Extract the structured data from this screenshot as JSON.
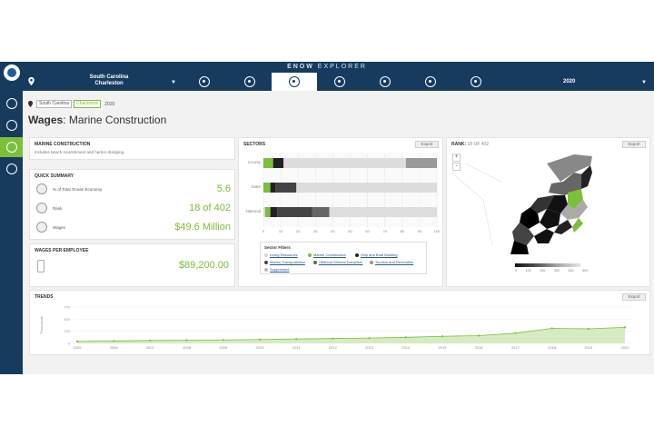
{
  "header": {
    "title_bold": "ENOW",
    "title_rest": " EXPLORER",
    "location_state": "South Carolina",
    "location_city": "Charleston",
    "year": "2020",
    "tabs": [
      {
        "icon": "living-resources-icon"
      },
      {
        "icon": "marine-construction-icon"
      },
      {
        "icon": "ship-boat-building-icon"
      },
      {
        "icon": "marine-transportation-icon"
      },
      {
        "icon": "offshore-mineral-icon"
      },
      {
        "icon": "tourism-recreation-icon"
      },
      {
        "icon": "all-sectors-icon"
      }
    ]
  },
  "sidebar": {
    "items": [
      {
        "icon": "globe-icon"
      },
      {
        "icon": "explore-icon"
      },
      {
        "icon": "economy-icon"
      },
      {
        "icon": "trends-icon"
      }
    ]
  },
  "breadcrumb": {
    "state": "South Carolina",
    "city": "Charleston",
    "year": "2020"
  },
  "page": {
    "title_bold": "Wages",
    "title_rest": ": Marine Construction"
  },
  "sector_panel": {
    "title": "MARINE CONSTRUCTION",
    "description": "Includes beach nourishment and harbor dredging."
  },
  "quick_summary": {
    "title": "QUICK SUMMARY",
    "rows": [
      {
        "label": "% of Total Ocean Economy",
        "value": "5.6"
      },
      {
        "label": "Rank",
        "value": "18 of 402"
      },
      {
        "label": "Wages",
        "value": "$49.6 Million"
      }
    ]
  },
  "wages_per_employee": {
    "title": "WAGES PER EMPLOYEE",
    "value": "$89,200.00"
  },
  "sectors": {
    "title": "SECTORS",
    "export_label": "Export",
    "filters_title": "Sector Filters",
    "filters": [
      {
        "label": "Living Resources",
        "color": "#d9d9d9"
      },
      {
        "label": "Marine Construction",
        "color": "#7bbf3a"
      },
      {
        "label": "Ship and Boat Building",
        "color": "#222222"
      },
      {
        "label": "Marine Transportation",
        "color": "#444444"
      },
      {
        "label": "Offshore Mineral Extraction",
        "color": "#666666"
      },
      {
        "label": "Tourism and Recreation",
        "color": "#999999"
      },
      {
        "label": "Suppressed",
        "color": "#bbbbbb"
      }
    ]
  },
  "chart_data": [
    {
      "type": "bar",
      "orientation": "horizontal",
      "stacked": true,
      "categories": [
        "County",
        "State",
        "National"
      ],
      "x_ticks": [
        "0",
        "10",
        "20",
        "30",
        "40",
        "50",
        "60",
        "70",
        "80",
        "90",
        "100"
      ],
      "xlim": [
        0,
        100
      ],
      "series": [
        {
          "name": "Living Resources",
          "color": "#d9d9d9",
          "values": [
            0,
            0,
            1
          ]
        },
        {
          "name": "Marine Construction",
          "color": "#7bbf3a",
          "values": [
            5.6,
            4,
            3
          ]
        },
        {
          "name": "Ship and Boat Building",
          "color": "#222222",
          "values": [
            6,
            3,
            4
          ]
        },
        {
          "name": "Marine Transportation",
          "color": "#444444",
          "values": [
            0,
            12,
            20
          ]
        },
        {
          "name": "Offshore Mineral Extraction",
          "color": "#666666",
          "values": [
            0,
            0,
            10
          ]
        },
        {
          "name": "Tourism and Recreation",
          "color": "#999999",
          "values": [
            0,
            0,
            0
          ]
        },
        {
          "name": "Suppressed",
          "color": "#dddddd",
          "values": [
            70,
            81,
            62
          ]
        }
      ],
      "extra_segments": {
        "County": {
          "color": "#999999",
          "from": 82,
          "to": 100
        }
      }
    },
    {
      "type": "area",
      "title": "TRENDS",
      "x": [
        "2005",
        "2006",
        "2007",
        "2008",
        "2009",
        "2010",
        "2011",
        "2012",
        "2013",
        "2014",
        "2015",
        "2016",
        "2017",
        "2018",
        "2019",
        "2020"
      ],
      "values": [
        40,
        50,
        60,
        65,
        70,
        80,
        90,
        100,
        110,
        125,
        145,
        160,
        210,
        310,
        300,
        330
      ],
      "y_ticks": [
        "0",
        "250",
        "500",
        "750"
      ],
      "ylim": [
        0,
        750
      ],
      "ylabel": "Thousands",
      "color": "#7bbf3a"
    }
  ],
  "rank_map": {
    "title": "RANK:",
    "subtitle": "18 OF 402",
    "export_label": "Export",
    "zoom_in": "+",
    "zoom_out": "-",
    "legend_ticks": [
      "0",
      "100",
      "200",
      "300",
      "400",
      "500"
    ]
  },
  "trends": {
    "title": "TRENDS",
    "export_label": "Export"
  }
}
